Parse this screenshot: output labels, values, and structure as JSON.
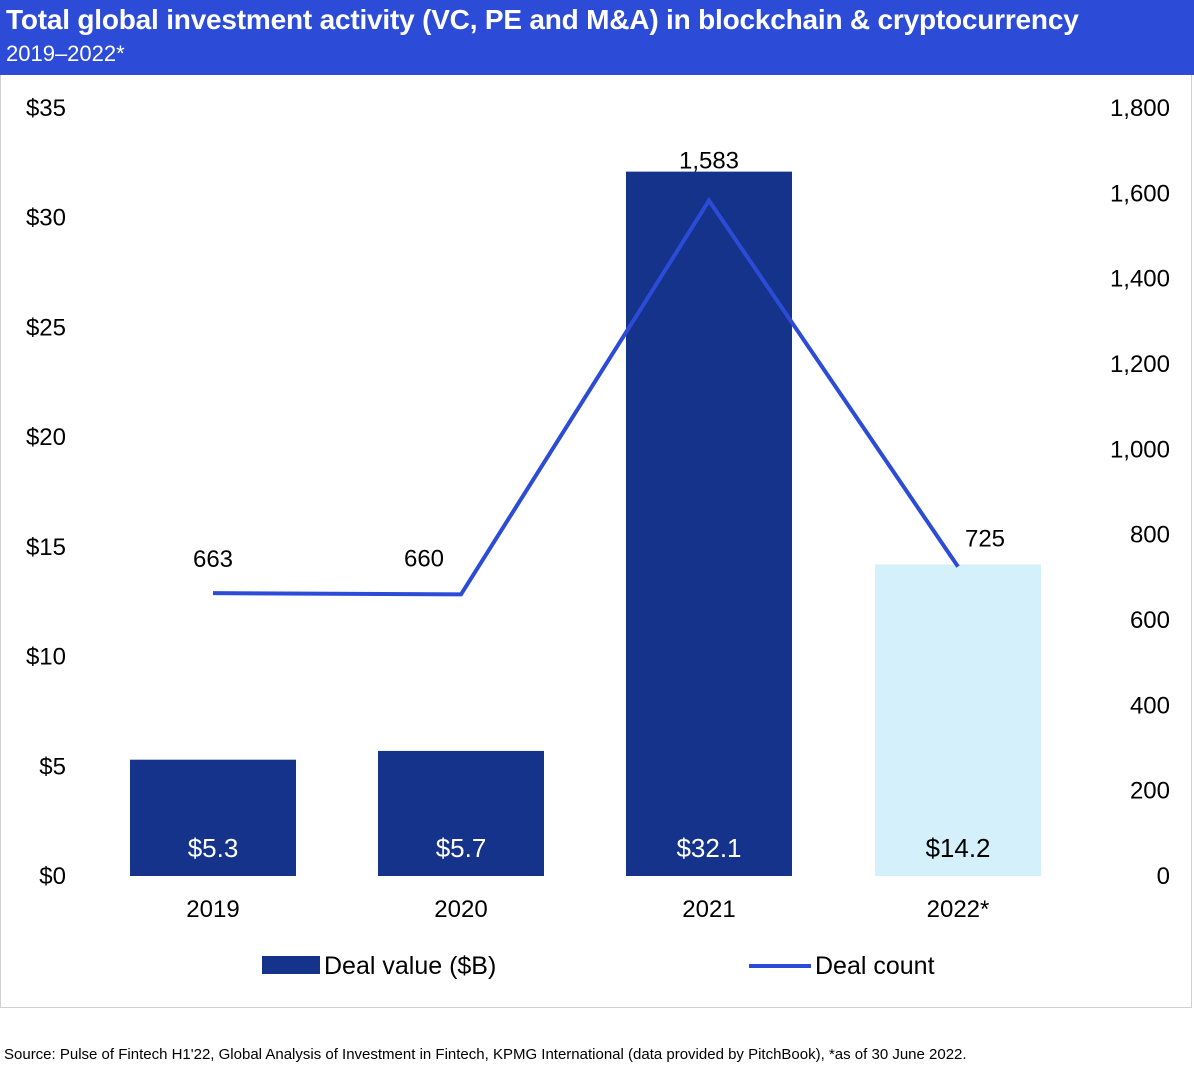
{
  "header": {
    "title": "Total global investment activity (VC, PE and M&A) in blockchain & cryptocurrency",
    "subtitle": "2019–2022*"
  },
  "colors": {
    "header_bg": "#2c4bd6",
    "bar": "#15338a",
    "bar_partial": "#d4f0fa",
    "line": "#2c4bd6"
  },
  "chart_data": {
    "type": "bar",
    "categories": [
      "2019",
      "2020",
      "2021",
      "2022*"
    ],
    "series": [
      {
        "name": "Deal value ($B)",
        "type": "bar",
        "axis": "left",
        "values": [
          5.3,
          5.7,
          32.1,
          14.2
        ],
        "labels": [
          "$5.3",
          "$5.7",
          "$32.1",
          "$14.2"
        ]
      },
      {
        "name": "Deal count",
        "type": "line",
        "axis": "right",
        "values": [
          663,
          660,
          1583,
          725
        ],
        "labels": [
          "663",
          "660",
          "1,583",
          "725"
        ]
      }
    ],
    "left_axis": {
      "ylim": [
        0,
        35
      ],
      "ticks": [
        0,
        5,
        10,
        15,
        20,
        25,
        30,
        35
      ],
      "tick_labels": [
        "$0",
        "$5",
        "$10",
        "$15",
        "$20",
        "$25",
        "$30",
        "$35"
      ]
    },
    "right_axis": {
      "ylim": [
        0,
        1800
      ],
      "ticks": [
        0,
        200,
        400,
        600,
        800,
        1000,
        1200,
        1400,
        1600,
        1800
      ],
      "tick_labels": [
        "0",
        "200",
        "400",
        "600",
        "800",
        "1,000",
        "1,200",
        "1,400",
        "1,600",
        "1,800"
      ]
    },
    "grid": false,
    "legend_position": "bottom",
    "legend": [
      "Deal value ($B)",
      "Deal count"
    ]
  },
  "footnote": "Source: Pulse of Fintech H1'22, Global Analysis of Investment in Fintech, KPMG International (data provided by PitchBook), *as of 30 June 2022."
}
